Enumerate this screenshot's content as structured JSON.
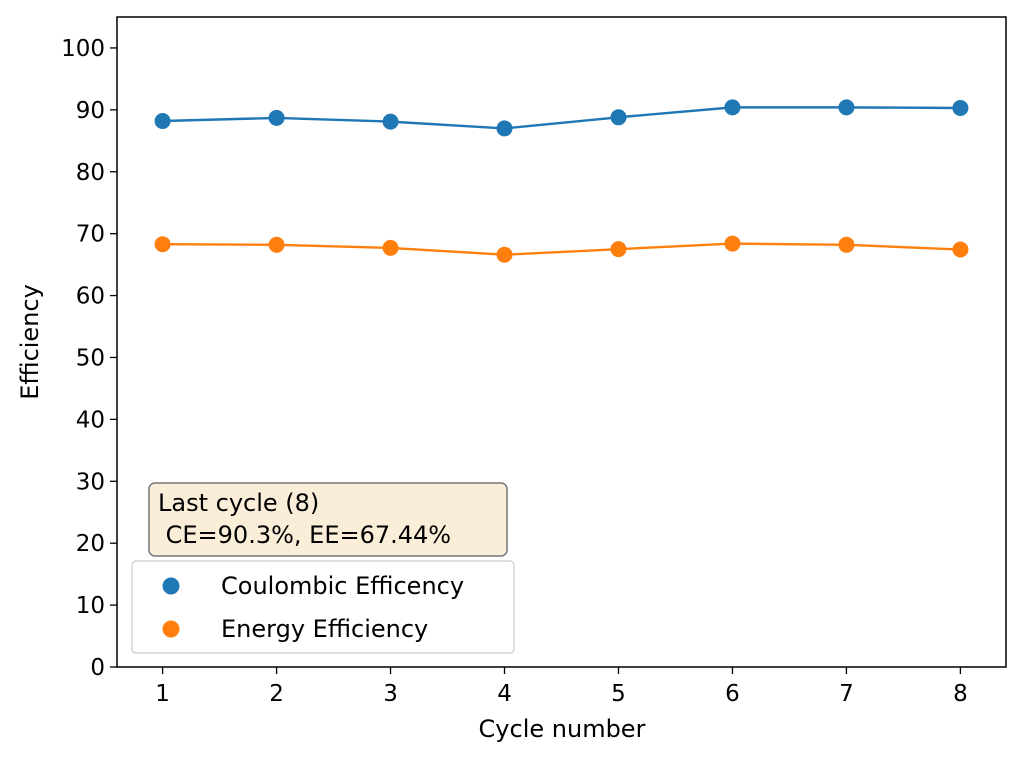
{
  "chart_data": {
    "type": "line",
    "title": "",
    "xlabel": "Cycle number",
    "ylabel": "Efficiency",
    "x": [
      1,
      2,
      3,
      4,
      5,
      6,
      7,
      8
    ],
    "xlim": [
      0.6,
      8.4
    ],
    "ylim": [
      0,
      105
    ],
    "xticks": [
      1,
      2,
      3,
      4,
      5,
      6,
      7,
      8
    ],
    "yticks": [
      0,
      10,
      20,
      30,
      40,
      50,
      60,
      70,
      80,
      90,
      100
    ],
    "grid": false,
    "legend_position": "lower-left",
    "series": [
      {
        "name": "Coulombic Efficency",
        "color": "#1f77b4",
        "values": [
          88.2,
          88.7,
          88.1,
          87.0,
          88.8,
          90.4,
          90.4,
          90.3
        ]
      },
      {
        "name": "Energy Efficiency",
        "color": "#ff7f0e",
        "values": [
          68.3,
          68.2,
          67.7,
          66.6,
          67.5,
          68.4,
          68.2,
          67.44
        ]
      }
    ],
    "annotation": {
      "line1": "Last cycle (8)",
      "line2": " CE=90.3%, EE=67.44%",
      "box_color": "#f5deb3"
    }
  }
}
